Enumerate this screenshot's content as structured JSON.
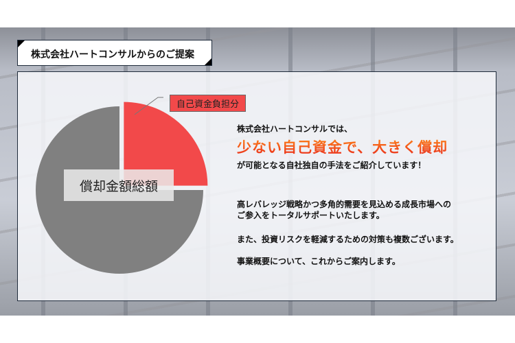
{
  "header": {
    "title": "株式会社ハートコンサルからのご提案"
  },
  "chart_data": {
    "type": "pie",
    "labels": [
      "償却金額総額",
      "自己資金負担分"
    ],
    "values": [
      75,
      25
    ],
    "colors": [
      "#808080",
      "#f2494a"
    ],
    "exploded": "自己資金負担分"
  },
  "body": {
    "line1": "株式会社ハートコンサルでは、",
    "highlight": "少ない自己資金で、大きく償却",
    "line3": "が可能となる自社独自の手法をご紹介しています！",
    "para1a": "高レバレッジ戦略かつ多角的需要を見込める成長市場への",
    "para1b": "ご参入をトータルサポートいたします。",
    "para2": "また、投資リスクを軽減するための対策も複数ございます。",
    "para3": "事業概要について、これからご案内します。"
  },
  "colors": {
    "accent": "#f2494a",
    "highlight_top": "#ff8a1a",
    "highlight_bottom": "#e8281c"
  }
}
